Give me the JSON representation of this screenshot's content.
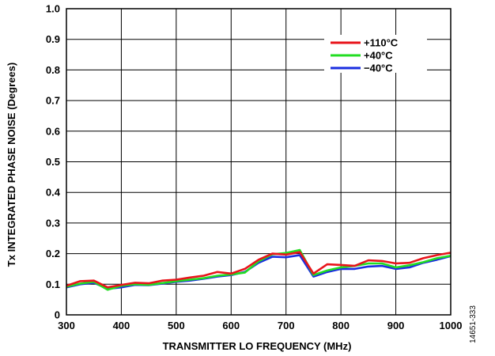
{
  "chart_data": {
    "type": "line",
    "xlabel": "TRANSMITTER LO FREQUENCY (MHz)",
    "ylabel": "Tx INTEGRATED PHASE NOISE (Degrees)",
    "xlim": [
      300,
      1000
    ],
    "ylim": [
      0,
      1.0
    ],
    "xticks": [
      "300",
      "400",
      "500",
      "600",
      "700",
      "800",
      "900",
      "1000"
    ],
    "yticks": [
      "0",
      "0.1",
      "0.2",
      "0.3",
      "0.4",
      "0.5",
      "0.6",
      "0.7",
      "0.8",
      "0.9",
      "1.0"
    ],
    "grid": true,
    "legend_position": "top-right",
    "series": [
      {
        "name": "+110°C",
        "color": "#e8141b",
        "x": [
          300,
          325,
          350,
          375,
          400,
          425,
          450,
          475,
          500,
          525,
          550,
          575,
          600,
          625,
          650,
          675,
          700,
          725,
          750,
          775,
          800,
          825,
          850,
          875,
          900,
          925,
          950,
          975,
          1000
        ],
        "y": [
          0.095,
          0.11,
          0.112,
          0.09,
          0.098,
          0.105,
          0.103,
          0.112,
          0.115,
          0.122,
          0.128,
          0.14,
          0.135,
          0.15,
          0.18,
          0.2,
          0.197,
          0.205,
          0.135,
          0.165,
          0.163,
          0.16,
          0.178,
          0.176,
          0.168,
          0.17,
          0.185,
          0.195,
          0.203
        ]
      },
      {
        "name": "+40°C",
        "color": "#22dd22",
        "x": [
          300,
          325,
          350,
          375,
          400,
          425,
          450,
          475,
          500,
          525,
          550,
          575,
          600,
          625,
          650,
          675,
          700,
          725,
          750,
          775,
          800,
          825,
          850,
          875,
          900,
          925,
          950,
          975,
          1000
        ],
        "y": [
          0.092,
          0.102,
          0.108,
          0.082,
          0.095,
          0.1,
          0.098,
          0.104,
          0.11,
          0.115,
          0.12,
          0.128,
          0.132,
          0.138,
          0.175,
          0.198,
          0.202,
          0.212,
          0.13,
          0.145,
          0.155,
          0.16,
          0.168,
          0.168,
          0.155,
          0.162,
          0.172,
          0.185,
          0.193
        ]
      },
      {
        "name": "−40°C",
        "color": "#1a2ee0",
        "x": [
          300,
          325,
          350,
          375,
          400,
          425,
          450,
          475,
          500,
          525,
          550,
          575,
          600,
          625,
          650,
          675,
          700,
          725,
          750,
          775,
          800,
          825,
          850,
          875,
          900,
          925,
          950,
          975,
          1000
        ],
        "y": [
          0.09,
          0.1,
          0.105,
          0.085,
          0.09,
          0.098,
          0.097,
          0.102,
          0.108,
          0.112,
          0.118,
          0.125,
          0.13,
          0.14,
          0.17,
          0.19,
          0.188,
          0.195,
          0.125,
          0.14,
          0.15,
          0.15,
          0.158,
          0.16,
          0.15,
          0.155,
          0.17,
          0.18,
          0.192
        ]
      }
    ]
  },
  "figure_id": "14651-333"
}
